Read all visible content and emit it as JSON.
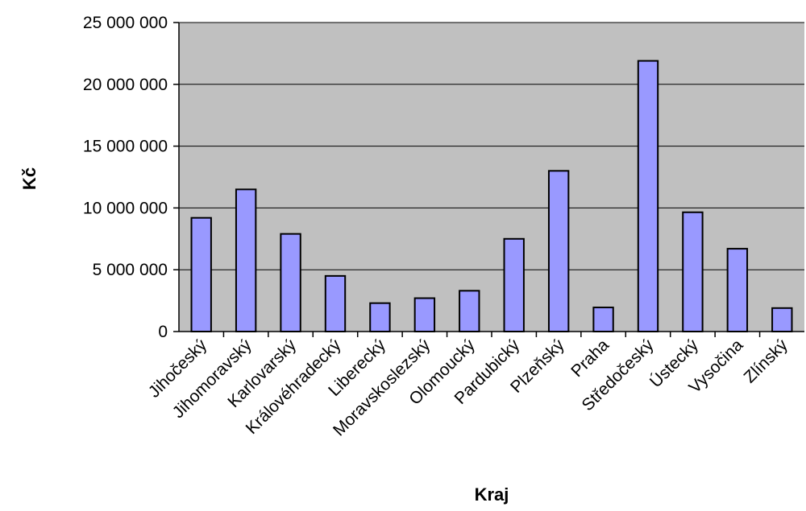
{
  "chart_data": {
    "type": "bar",
    "xlabel": "Kraj",
    "ylabel": "Kč",
    "ylim": [
      0,
      25000000
    ],
    "yticks": [
      0,
      5000000,
      10000000,
      15000000,
      20000000,
      25000000
    ],
    "ytick_labels": [
      "0",
      "5 000 000",
      "10 000 000",
      "15 000 000",
      "20 000 000",
      "25 000 000"
    ],
    "categories": [
      "Jihočeský",
      "Jihomoravský",
      "Karlovarský",
      "Královéhradecký",
      "Liberecký",
      "Moravskoslezský",
      "Olomoucký",
      "Pardubický",
      "Plzeňský",
      "Praha",
      "Středočeský",
      "Ústecký",
      "Vysočina",
      "Zlínský"
    ],
    "values": [
      9200000,
      11500000,
      7900000,
      4500000,
      2300000,
      2700000,
      3300000,
      7500000,
      13000000,
      1950000,
      21900000,
      9650000,
      6700000,
      1900000
    ],
    "grid": true,
    "legend": "none",
    "colors": {
      "plot_background": "#c0c0c0",
      "bar_fill": "#9999ff",
      "bar_stroke": "#000000",
      "grid": "#000000",
      "page_background": "#ffffff"
    }
  }
}
